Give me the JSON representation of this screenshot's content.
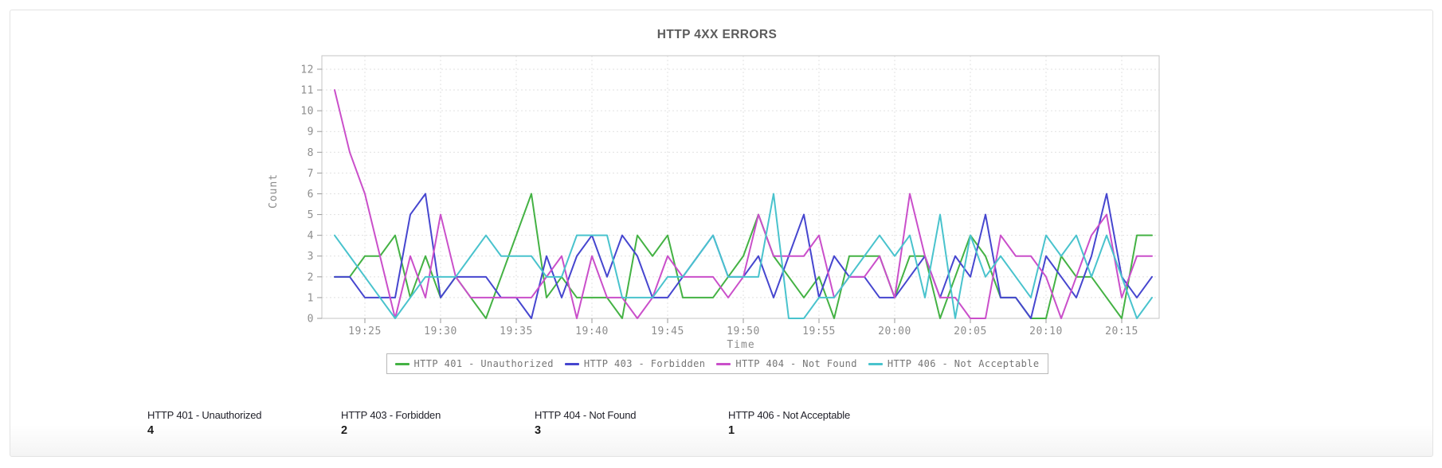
{
  "header": {
    "title": "HTTP 4XX ERRORS"
  },
  "chart_data": {
    "type": "line",
    "title": "HTTP 4XX ERRORS",
    "xlabel": "Time",
    "ylabel": "Count",
    "ylim": [
      0,
      12.65
    ],
    "y_ticks": [
      0,
      1,
      2,
      3,
      4,
      5,
      6,
      7,
      8,
      9,
      10,
      11,
      12
    ],
    "x_ticks": [
      "19:25",
      "19:30",
      "19:35",
      "19:40",
      "19:45",
      "19:50",
      "19:55",
      "20:00",
      "20:05",
      "20:10",
      "20:15"
    ],
    "grid": true,
    "legend_position": "bottom",
    "times": [
      "19:23",
      "19:24",
      "19:25",
      "19:26",
      "19:27",
      "19:28",
      "19:29",
      "19:30",
      "19:31",
      "19:32",
      "19:33",
      "19:34",
      "19:35",
      "19:36",
      "19:37",
      "19:38",
      "19:39",
      "19:40",
      "19:41",
      "19:42",
      "19:43",
      "19:44",
      "19:45",
      "19:46",
      "19:47",
      "19:48",
      "19:49",
      "19:50",
      "19:51",
      "19:52",
      "19:53",
      "19:54",
      "19:55",
      "19:56",
      "19:57",
      "19:58",
      "19:59",
      "20:00",
      "20:01",
      "20:02",
      "20:03",
      "20:04",
      "20:05",
      "20:06",
      "20:07",
      "20:08",
      "20:09",
      "20:10",
      "20:11",
      "20:12",
      "20:13",
      "20:14",
      "20:15",
      "20:16",
      "20:17"
    ],
    "series": [
      {
        "name": "HTTP 401 - Unauthorized",
        "color": "#44b244",
        "values": [
          2,
          2,
          3,
          3,
          4,
          1,
          3,
          1,
          2,
          1,
          0,
          2,
          4,
          6,
          1,
          2,
          1,
          1,
          1,
          0,
          4,
          3,
          4,
          1,
          1,
          1,
          2,
          3,
          5,
          3,
          2,
          1,
          2,
          0,
          3,
          3,
          3,
          1,
          3,
          3,
          0,
          2,
          4,
          3,
          1,
          1,
          0,
          0,
          3,
          2,
          2,
          1,
          0,
          4,
          4
        ]
      },
      {
        "name": "HTTP 403 - Forbidden",
        "color": "#4646cf",
        "values": [
          2,
          2,
          1,
          1,
          1,
          5,
          6,
          1,
          2,
          2,
          2,
          1,
          1,
          0,
          3,
          1,
          3,
          4,
          2,
          4,
          3,
          1,
          1,
          2,
          3,
          4,
          2,
          2,
          3,
          1,
          3,
          5,
          1,
          3,
          2,
          2,
          1,
          1,
          2,
          3,
          1,
          3,
          2,
          5,
          1,
          1,
          0,
          3,
          2,
          1,
          3,
          6,
          2,
          1,
          2
        ]
      },
      {
        "name": "HTTP 404 - Not Found",
        "color": "#ca4fca",
        "values": [
          11,
          8,
          6,
          3,
          0,
          3,
          1,
          5,
          2,
          1,
          1,
          1,
          1,
          1,
          2,
          3,
          0,
          3,
          1,
          1,
          0,
          1,
          3,
          2,
          2,
          2,
          1,
          2,
          5,
          3,
          3,
          3,
          4,
          1,
          2,
          2,
          3,
          1,
          6,
          3,
          1,
          1,
          0,
          0,
          4,
          3,
          3,
          2,
          0,
          2,
          4,
          5,
          1,
          3,
          3
        ]
      },
      {
        "name": "HTTP 406 - Not Acceptable",
        "color": "#49c3cd",
        "values": [
          4,
          3,
          2,
          1,
          0,
          1,
          2,
          2,
          2,
          3,
          4,
          3,
          3,
          3,
          2,
          2,
          4,
          4,
          4,
          1,
          1,
          1,
          2,
          2,
          3,
          4,
          2,
          2,
          2,
          6,
          0,
          0,
          1,
          1,
          2,
          3,
          4,
          3,
          4,
          1,
          5,
          0,
          4,
          2,
          3,
          2,
          1,
          4,
          3,
          4,
          2,
          4,
          2,
          0,
          1
        ]
      }
    ]
  },
  "stats": [
    {
      "label": "HTTP 401 - Unauthorized",
      "value": "4"
    },
    {
      "label": "HTTP 403 - Forbidden",
      "value": "2"
    },
    {
      "label": "HTTP 404 - Not Found",
      "value": "3"
    },
    {
      "label": "HTTP 406 - Not Acceptable",
      "value": "1"
    }
  ]
}
